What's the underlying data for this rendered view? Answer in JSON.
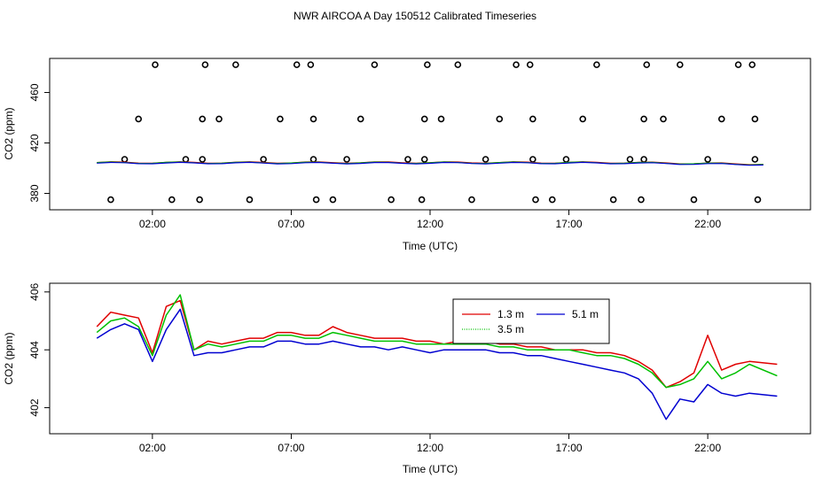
{
  "title": "NWR AIRCOA A  Day 150512  Calibrated Timeseries",
  "chart_data": [
    {
      "type": "scatter",
      "xlabel": "Time (UTC)",
      "ylabel": "CO2 (ppm)",
      "xlim": [
        -1.7,
        25.7
      ],
      "ylim": [
        367,
        487
      ],
      "x_ticks": [
        2,
        7,
        12,
        17,
        22
      ],
      "x_tick_labels": [
        "02:00",
        "07:00",
        "12:00",
        "17:00",
        "22:00"
      ],
      "y_ticks": [
        380,
        420,
        460
      ],
      "y_tick_labels": [
        "380",
        "420",
        "460"
      ],
      "calibration_points": [
        {
          "x": 0.5,
          "y": 375
        },
        {
          "x": 1.0,
          "y": 407
        },
        {
          "x": 1.5,
          "y": 439
        },
        {
          "x": 2.1,
          "y": 482
        },
        {
          "x": 2.7,
          "y": 375
        },
        {
          "x": 3.2,
          "y": 407
        },
        {
          "x": 3.7,
          "y": 375
        },
        {
          "x": 3.8,
          "y": 407
        },
        {
          "x": 3.8,
          "y": 439
        },
        {
          "x": 3.9,
          "y": 482
        },
        {
          "x": 4.4,
          "y": 439
        },
        {
          "x": 5.0,
          "y": 482
        },
        {
          "x": 5.5,
          "y": 375
        },
        {
          "x": 6.0,
          "y": 407
        },
        {
          "x": 6.6,
          "y": 439
        },
        {
          "x": 7.2,
          "y": 482
        },
        {
          "x": 7.7,
          "y": 482
        },
        {
          "x": 7.8,
          "y": 439
        },
        {
          "x": 7.8,
          "y": 407
        },
        {
          "x": 7.9,
          "y": 375
        },
        {
          "x": 8.5,
          "y": 375
        },
        {
          "x": 9.0,
          "y": 407
        },
        {
          "x": 9.5,
          "y": 439
        },
        {
          "x": 10.0,
          "y": 482
        },
        {
          "x": 10.6,
          "y": 375
        },
        {
          "x": 11.2,
          "y": 407
        },
        {
          "x": 11.7,
          "y": 375
        },
        {
          "x": 11.8,
          "y": 407
        },
        {
          "x": 11.8,
          "y": 439
        },
        {
          "x": 11.9,
          "y": 482
        },
        {
          "x": 12.4,
          "y": 439
        },
        {
          "x": 13.0,
          "y": 482
        },
        {
          "x": 13.5,
          "y": 375
        },
        {
          "x": 14.0,
          "y": 407
        },
        {
          "x": 14.5,
          "y": 439
        },
        {
          "x": 15.1,
          "y": 482
        },
        {
          "x": 15.6,
          "y": 482
        },
        {
          "x": 15.7,
          "y": 439
        },
        {
          "x": 15.7,
          "y": 407
        },
        {
          "x": 15.8,
          "y": 375
        },
        {
          "x": 16.4,
          "y": 375
        },
        {
          "x": 16.9,
          "y": 407
        },
        {
          "x": 17.5,
          "y": 439
        },
        {
          "x": 18.0,
          "y": 482
        },
        {
          "x": 18.6,
          "y": 375
        },
        {
          "x": 19.2,
          "y": 407
        },
        {
          "x": 19.6,
          "y": 375
        },
        {
          "x": 19.7,
          "y": 407
        },
        {
          "x": 19.7,
          "y": 439
        },
        {
          "x": 19.8,
          "y": 482
        },
        {
          "x": 20.4,
          "y": 439
        },
        {
          "x": 21.0,
          "y": 482
        },
        {
          "x": 21.5,
          "y": 375
        },
        {
          "x": 22.0,
          "y": 407
        },
        {
          "x": 22.5,
          "y": 439
        },
        {
          "x": 23.1,
          "y": 482
        },
        {
          "x": 23.6,
          "y": 482
        },
        {
          "x": 23.7,
          "y": 439
        },
        {
          "x": 23.7,
          "y": 407
        },
        {
          "x": 23.8,
          "y": 375
        }
      ]
    },
    {
      "type": "line",
      "xlabel": "Time (UTC)",
      "ylabel": "CO2 (ppm)",
      "xlim": [
        -1.7,
        25.7
      ],
      "ylim": [
        401.1,
        406.3
      ],
      "x_ticks": [
        2,
        7,
        12,
        17,
        22
      ],
      "x_tick_labels": [
        "02:00",
        "07:00",
        "12:00",
        "17:00",
        "22:00"
      ],
      "y_ticks": [
        402,
        404,
        406
      ],
      "y_tick_labels": [
        "402",
        "404",
        "406"
      ],
      "legend": {
        "position": "top-right",
        "entries": [
          {
            "label": "1.3 m",
            "color": "#e00000"
          },
          {
            "label": "3.5 m",
            "color": "#00c000"
          },
          {
            "label": "5.1 m",
            "color": "#0000d0"
          }
        ]
      },
      "series": [
        {
          "color": "#e00000",
          "x": [
            0,
            0.5,
            1,
            1.5,
            2,
            2.5,
            3,
            3.5,
            4,
            4.5,
            5,
            5.5,
            6,
            6.5,
            7,
            7.5,
            8,
            8.5,
            9,
            9.5,
            10,
            10.5,
            11,
            11.5,
            12,
            12.5,
            13,
            13.5,
            14,
            14.5,
            15,
            15.5,
            16,
            16.5,
            17,
            17.5,
            18,
            18.5,
            19,
            19.5,
            20,
            20.5,
            21,
            21.5,
            22,
            22.5,
            23,
            23.5,
            24.5
          ],
          "y": [
            404.8,
            405.3,
            405.2,
            405.1,
            403.9,
            405.5,
            405.7,
            404.0,
            404.3,
            404.2,
            404.3,
            404.4,
            404.4,
            404.6,
            404.6,
            404.5,
            404.5,
            404.8,
            404.6,
            404.5,
            404.4,
            404.4,
            404.4,
            404.3,
            404.3,
            404.2,
            404.3,
            404.3,
            404.3,
            404.2,
            404.2,
            404.1,
            404.1,
            404.0,
            404.0,
            404.0,
            403.9,
            403.9,
            403.8,
            403.6,
            403.3,
            402.7,
            402.9,
            403.2,
            404.5,
            403.3,
            403.5,
            403.6,
            403.5
          ]
        },
        {
          "color": "#00c000",
          "x": [
            0,
            0.5,
            1,
            1.5,
            2,
            2.5,
            3,
            3.5,
            4,
            4.5,
            5,
            5.5,
            6,
            6.5,
            7,
            7.5,
            8,
            8.5,
            9,
            9.5,
            10,
            10.5,
            11,
            11.5,
            12,
            12.5,
            13,
            13.5,
            14,
            14.5,
            15,
            15.5,
            16,
            16.5,
            17,
            17.5,
            18,
            18.5,
            19,
            19.5,
            20,
            20.5,
            21,
            21.5,
            22,
            22.5,
            23,
            23.5,
            24.5
          ],
          "y": [
            404.6,
            405.0,
            405.1,
            404.8,
            403.8,
            405.2,
            405.9,
            404.0,
            404.2,
            404.1,
            404.2,
            404.3,
            404.3,
            404.5,
            404.5,
            404.4,
            404.4,
            404.6,
            404.5,
            404.4,
            404.3,
            404.3,
            404.3,
            404.2,
            404.2,
            404.2,
            404.2,
            404.2,
            404.2,
            404.1,
            404.1,
            404.0,
            404.0,
            404.0,
            404.0,
            403.9,
            403.8,
            403.8,
            403.7,
            403.5,
            403.2,
            402.7,
            402.8,
            403.0,
            403.6,
            403.0,
            403.2,
            403.5,
            403.1
          ]
        },
        {
          "color": "#0000d0",
          "x": [
            0,
            0.5,
            1,
            1.5,
            2,
            2.5,
            3,
            3.5,
            4,
            4.5,
            5,
            5.5,
            6,
            6.5,
            7,
            7.5,
            8,
            8.5,
            9,
            9.5,
            10,
            10.5,
            11,
            11.5,
            12,
            12.5,
            13,
            13.5,
            14,
            14.5,
            15,
            15.5,
            16,
            16.5,
            17,
            17.5,
            18,
            18.5,
            19,
            19.5,
            20,
            20.5,
            21,
            21.5,
            22,
            22.5,
            23,
            23.5,
            24.5
          ],
          "y": [
            404.4,
            404.7,
            404.9,
            404.7,
            403.6,
            404.7,
            405.4,
            403.8,
            403.9,
            403.9,
            404.0,
            404.1,
            404.1,
            404.3,
            404.3,
            404.2,
            404.2,
            404.3,
            404.2,
            404.1,
            404.1,
            404.0,
            404.1,
            404.0,
            403.9,
            404.0,
            404.0,
            404.0,
            404.0,
            403.9,
            403.9,
            403.8,
            403.8,
            403.7,
            403.6,
            403.5,
            403.4,
            403.3,
            403.2,
            403.0,
            402.5,
            401.6,
            402.3,
            402.2,
            402.8,
            402.5,
            402.4,
            402.5,
            402.4
          ]
        }
      ]
    }
  ]
}
